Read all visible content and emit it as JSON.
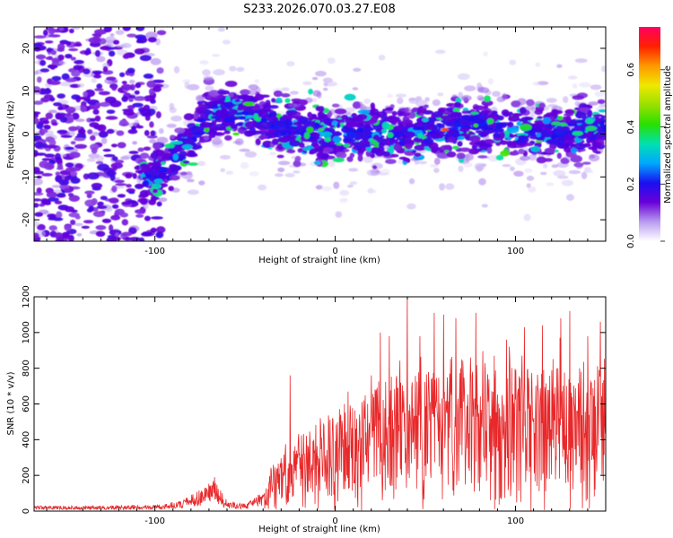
{
  "figure_title": "S233.2026.070.03.27.E08",
  "colorbar": {
    "label": "Normalized spectral amplitude",
    "ticks": [
      0.0,
      0.2,
      0.4,
      0.6
    ],
    "tick_labels": [
      "0.0",
      "0.2",
      "0.4",
      "0.6"
    ],
    "range": [
      0.0,
      0.75
    ],
    "colormap": [
      "#ffffff",
      "#b89cf0",
      "#6a00d8",
      "#1a10f0",
      "#00a8ff",
      "#00e0b0",
      "#28e000",
      "#9ae000",
      "#f0e800",
      "#ff9800",
      "#ff2000",
      "#ff0060"
    ]
  },
  "chart_data": [
    {
      "type": "heatmap",
      "title": "",
      "xlabel": "Height of straight line (km)",
      "ylabel": "Frequency (Hz)",
      "xlim": [
        -167,
        150
      ],
      "ylim": [
        -25,
        25
      ],
      "x_ticks": [
        -100,
        0,
        100
      ],
      "x_tick_labels": [
        "-100",
        "0",
        "100"
      ],
      "y_ticks": [
        -20,
        -10,
        0,
        10,
        20
      ],
      "y_tick_labels": [
        "-20",
        "-10",
        "0",
        "10",
        "20"
      ],
      "value_range": [
        0.0,
        0.75
      ],
      "ridge": [
        [
          -100,
          -10
        ],
        [
          -90,
          -6
        ],
        [
          -80,
          -2
        ],
        [
          -72,
          4
        ],
        [
          -60,
          5
        ],
        [
          -40,
          3
        ],
        [
          -20,
          1
        ],
        [
          0,
          0
        ],
        [
          20,
          0
        ],
        [
          40,
          0
        ],
        [
          60,
          1
        ],
        [
          80,
          2
        ],
        [
          100,
          1
        ],
        [
          120,
          0
        ],
        [
          150,
          2
        ]
      ]
    },
    {
      "type": "line",
      "title": "",
      "xlabel": "Height of straight line (km)",
      "ylabel": "SNR (10 * v/v)",
      "xlim": [
        -167,
        150
      ],
      "ylim": [
        0,
        1200
      ],
      "x_ticks": [
        -100,
        0,
        100
      ],
      "x_tick_labels": [
        "-100",
        "0",
        "100"
      ],
      "y_ticks": [
        0,
        200,
        400,
        600,
        800,
        1000,
        1200
      ],
      "y_tick_labels": [
        "0",
        "200",
        "400",
        "600",
        "800",
        "1000",
        "1200"
      ],
      "color": "#e8282a",
      "envelope": [
        [
          -167,
          30
        ],
        [
          -130,
          30
        ],
        [
          -100,
          35
        ],
        [
          -85,
          60
        ],
        [
          -75,
          120
        ],
        [
          -68,
          190
        ],
        [
          -60,
          60
        ],
        [
          -50,
          40
        ],
        [
          -40,
          110
        ],
        [
          -35,
          280
        ],
        [
          -25,
          420
        ],
        [
          -15,
          520
        ],
        [
          -5,
          560
        ],
        [
          5,
          620
        ],
        [
          15,
          700
        ],
        [
          25,
          820
        ],
        [
          35,
          880
        ],
        [
          45,
          900
        ],
        [
          55,
          880
        ],
        [
          65,
          920
        ],
        [
          75,
          920
        ],
        [
          85,
          900
        ],
        [
          95,
          900
        ],
        [
          105,
          920
        ],
        [
          115,
          900
        ],
        [
          125,
          900
        ],
        [
          135,
          880
        ],
        [
          150,
          860
        ]
      ],
      "peaks": [
        [
          -67,
          190
        ],
        [
          -25,
          760
        ],
        [
          5,
          600
        ],
        [
          20,
          760
        ],
        [
          25,
          1000
        ],
        [
          30,
          980
        ],
        [
          40,
          1200
        ],
        [
          47,
          980
        ],
        [
          55,
          1110
        ],
        [
          60,
          1100
        ],
        [
          67,
          1080
        ],
        [
          78,
          1110
        ],
        [
          95,
          960
        ],
        [
          105,
          1030
        ],
        [
          115,
          1040
        ],
        [
          125,
          1080
        ],
        [
          130,
          1120
        ],
        [
          140,
          980
        ],
        [
          147,
          1060
        ]
      ]
    }
  ]
}
